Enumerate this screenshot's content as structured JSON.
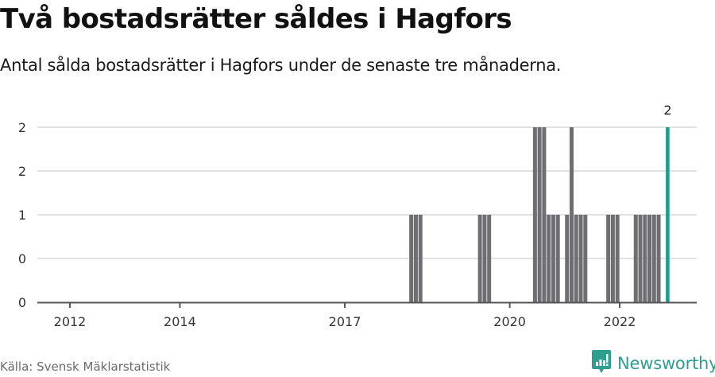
{
  "header": {
    "title": "Två bostadsrätter såldes i Hagfors",
    "subtitle": "Antal sålda bostadsrätter i Hagfors under de senaste tre månaderna."
  },
  "footer": {
    "source": "Källa: Svensk Mäklarstatistik",
    "brand": "Newsworthy",
    "brand_icon": "bar-chart-speech-bubble-icon"
  },
  "colors": {
    "bar": "#6e6e73",
    "highlight": "#1a9e91",
    "grid": "#e1e1e1",
    "axis": "#555555",
    "brand": "#2e9e8f"
  },
  "chart_data": {
    "type": "bar",
    "title": "Två bostadsrätter såldes i Hagfors",
    "subtitle": "Antal sålda bostadsrätter i Hagfors under de senaste tre månaderna.",
    "xlabel": "",
    "ylabel": "",
    "ylim": [
      0,
      2
    ],
    "yticks": [
      0,
      0.5,
      1,
      1.5,
      2
    ],
    "ytick_labels": [
      "0",
      "0",
      "1",
      "2",
      "2"
    ],
    "xticks": [
      "2012",
      "2014",
      "2017",
      "2020",
      "2022"
    ],
    "grid": true,
    "legend": "none",
    "highlight_label": "2",
    "series": [
      {
        "name": "Sålda bostadsrätter",
        "points": [
          {
            "x": "2018-03",
            "value": 1
          },
          {
            "x": "2018-04",
            "value": 1
          },
          {
            "x": "2018-05",
            "value": 1
          },
          {
            "x": "2019-06",
            "value": 1
          },
          {
            "x": "2019-07",
            "value": 1
          },
          {
            "x": "2019-08",
            "value": 1
          },
          {
            "x": "2020-06",
            "value": 2
          },
          {
            "x": "2020-07",
            "value": 2
          },
          {
            "x": "2020-08",
            "value": 2
          },
          {
            "x": "2020-09",
            "value": 1
          },
          {
            "x": "2020-10",
            "value": 1
          },
          {
            "x": "2020-11",
            "value": 1
          },
          {
            "x": "2021-01",
            "value": 1
          },
          {
            "x": "2021-02",
            "value": 2
          },
          {
            "x": "2021-03",
            "value": 1
          },
          {
            "x": "2021-04",
            "value": 1
          },
          {
            "x": "2021-05",
            "value": 1
          },
          {
            "x": "2021-10",
            "value": 1
          },
          {
            "x": "2021-11",
            "value": 1
          },
          {
            "x": "2021-12",
            "value": 1
          },
          {
            "x": "2022-04",
            "value": 1
          },
          {
            "x": "2022-05",
            "value": 1
          },
          {
            "x": "2022-06",
            "value": 1
          },
          {
            "x": "2022-07",
            "value": 1
          },
          {
            "x": "2022-08",
            "value": 1
          },
          {
            "x": "2022-09",
            "value": 1
          },
          {
            "x": "2022-11",
            "value": 2,
            "highlight": true
          }
        ]
      }
    ]
  }
}
